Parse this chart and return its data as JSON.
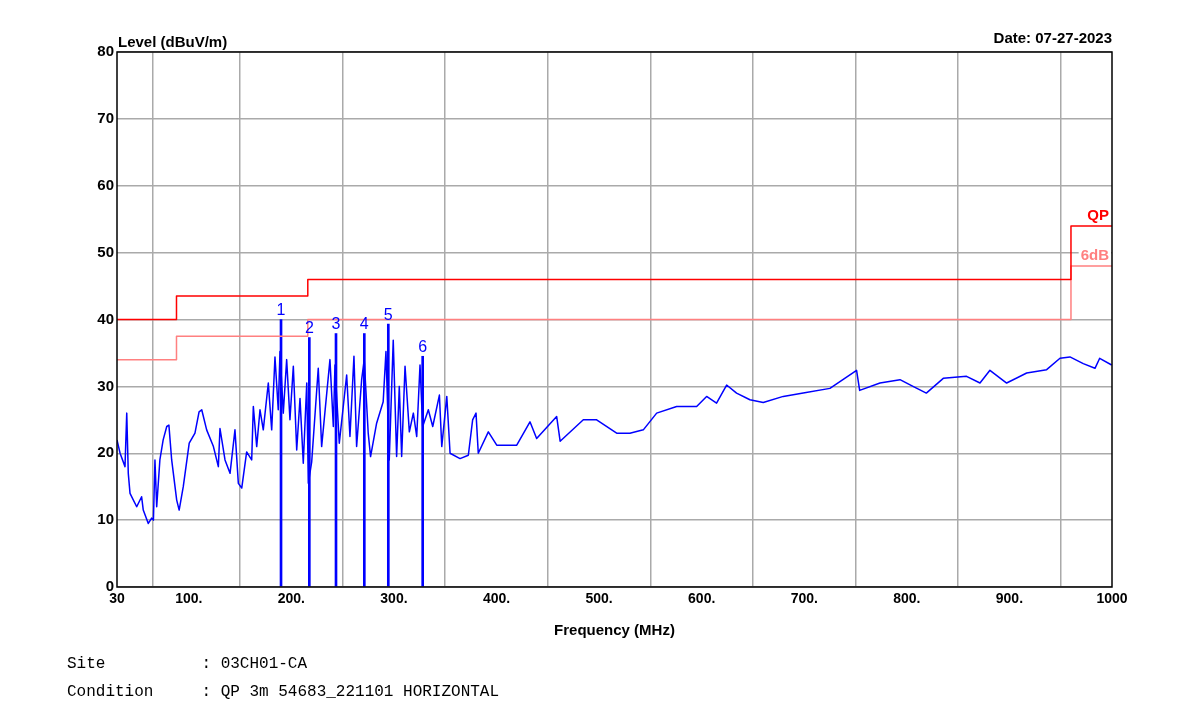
{
  "chart_data": {
    "type": "line",
    "xlabel": "Frequency (MHz)",
    "ylabel": "Level (dBuV/m)",
    "xlim": [
      30,
      1000
    ],
    "ylim": [
      0,
      80
    ],
    "xticks": [
      30,
      {
        "value": 100,
        "label": "100."
      },
      {
        "value": 200,
        "label": "200."
      },
      {
        "value": 300,
        "label": "300."
      },
      {
        "value": 400,
        "label": "400."
      },
      {
        "value": 500,
        "label": "500."
      },
      {
        "value": 600,
        "label": "600."
      },
      {
        "value": 700,
        "label": "700."
      },
      {
        "value": 800,
        "label": "800."
      },
      {
        "value": 900,
        "label": "900."
      },
      1000
    ],
    "yticks": [
      0,
      10,
      20,
      30,
      40,
      50,
      60,
      70,
      80
    ],
    "grid": true,
    "legend": false,
    "marker": "none",
    "annotations": [
      "Date: 07-27-2023",
      "Site          : 03CH01-CA",
      "Condition     : QP 3m 54683_221101 HORIZONTAL",
      {
        "text": "1",
        "x": 189.9,
        "y": 40
      },
      {
        "text": "2",
        "x": 217.5,
        "y": 37.3
      },
      {
        "text": "3",
        "x": 243.5,
        "y": 37.9
      },
      {
        "text": "4",
        "x": 271.1,
        "y": 37.9
      },
      {
        "text": "5",
        "x": 294.5,
        "y": 39.3
      },
      {
        "text": "6",
        "x": 328,
        "y": 34.5
      }
    ],
    "series": [
      {
        "color": "#0000ff",
        "x": [
          30,
          33,
          37.8,
          39.5,
          41,
          42.7,
          49.2,
          54,
          55.6,
          60.5,
          63.8,
          65.5,
          67,
          68.7,
          71.8,
          75,
          78.5,
          80.6,
          83.3,
          88.2,
          90.6,
          94.6,
          100.4,
          106,
          110,
          112.6,
          117.4,
          124,
          128.8,
          130.4,
          135.3,
          140.2,
          145,
          148.3,
          151.6,
          156.4,
          161.3,
          162.9,
          166.2,
          169.4,
          172.6,
          177.5,
          180.8,
          184,
          187.2,
          188.9,
          192.1,
          195.4,
          198.6,
          201.9,
          205.2,
          208.4,
          211.6,
          215,
          216.5,
          219.8,
          226.2,
          229.5,
          237.6,
          240.9,
          242.5,
          246.7,
          253.9,
          257.1,
          261,
          263.6,
          268.5,
          271,
          274.9,
          277.2,
          283.1,
          289.5,
          292.2,
          295.4,
          299.3,
          302.6,
          305.2,
          307.5,
          310.8,
          315,
          318.9,
          322.2,
          325.4,
          328,
          333.5,
          337.8,
          344.3,
          346.6,
          351.5,
          354.7,
          364.4,
          372.5,
          376.7,
          380,
          382.2,
          392,
          400.2,
          419.7,
          432.6,
          439.1,
          458.6,
          462,
          484.6,
          497.6,
          517.1,
          530,
          543.1,
          556.1,
          575.6,
          595.1,
          604.8,
          614.5,
          624.3,
          634,
          647,
          660,
          679.5,
          699,
          725,
          751,
          754,
          773.8,
          793.3,
          806,
          819,
          835.5,
          858.2,
          871.3,
          881,
          897.3,
          916.8,
          936.3,
          949.3,
          959,
          972,
          983.4,
          988,
          999.7
        ],
        "values": [
          22,
          20,
          18,
          26,
          17,
          14,
          12,
          13.5,
          11.5,
          9.5,
          10.3,
          10,
          19,
          12,
          19,
          22,
          24,
          24.2,
          19,
          13,
          11.5,
          15,
          21.5,
          23,
          26.2,
          26.5,
          23.5,
          21,
          18,
          23.7,
          19,
          17,
          23.5,
          15.5,
          14.8,
          20.2,
          19,
          27,
          21,
          26.5,
          23.5,
          30.5,
          23.5,
          34.4,
          26.5,
          35.2,
          26,
          34,
          25,
          33,
          20.5,
          28.2,
          18.5,
          30.5,
          15.5,
          18.7,
          32.7,
          21,
          34,
          24,
          33.2,
          21.5,
          31.7,
          22.5,
          34.5,
          21,
          31,
          34,
          23,
          19.5,
          24.5,
          27.7,
          35.2,
          19,
          36.9,
          19.5,
          30,
          19.5,
          33,
          23.2,
          26,
          22.5,
          33.2,
          24,
          26.5,
          24,
          28.7,
          21,
          28.5,
          20,
          19.2,
          19.7,
          25,
          26,
          20,
          23.2,
          21.2,
          21.2,
          24.7,
          22.2,
          25.5,
          21.8,
          25,
          25,
          23,
          23,
          23.5,
          26,
          27,
          27,
          28.5,
          27.5,
          30.2,
          29,
          28,
          27.6,
          28.5,
          29,
          29.7,
          32.4,
          29.4,
          30.5,
          31,
          30,
          29,
          31.2,
          31.5,
          30.5,
          32.4,
          30.5,
          32,
          32.5,
          34.2,
          34.4,
          33.4,
          32.7,
          34.2,
          33.2
        ]
      },
      {
        "type": "step",
        "name": "QP",
        "color": "#ff0000",
        "x": [
          30,
          88,
          216,
          960,
          1000
        ],
        "values": [
          40,
          43.5,
          46,
          54,
          54
        ]
      },
      {
        "type": "step",
        "name": "6dB",
        "color": "#ff8080",
        "x": [
          30,
          88,
          216,
          960,
          1000
        ],
        "values": [
          34,
          37.5,
          40,
          48,
          48
        ]
      },
      {
        "type": "bar",
        "color": "#0000ff",
        "x": [
          189.9,
          217.5,
          243.5,
          271.1,
          294.5,
          328
        ],
        "values": [
          40,
          37.3,
          37.9,
          37.9,
          39.3,
          34.5
        ]
      }
    ]
  }
}
